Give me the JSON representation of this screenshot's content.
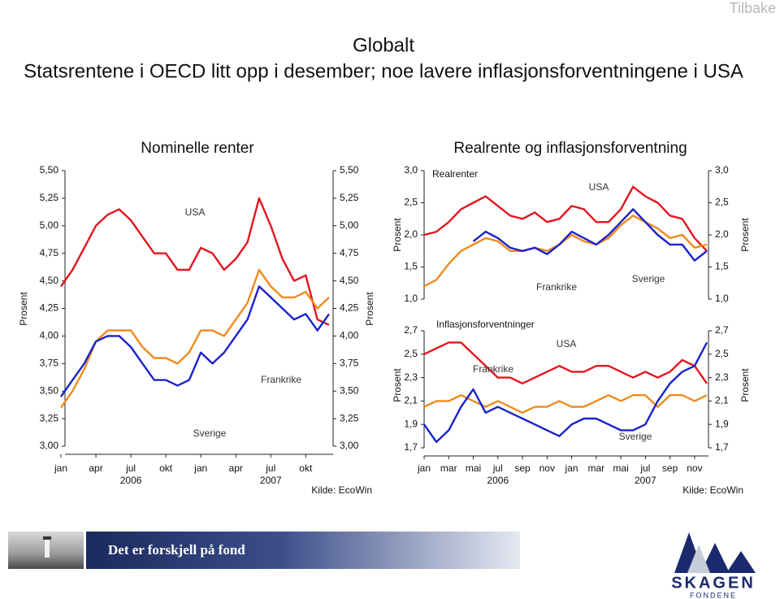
{
  "page": {
    "back_button": "Tilbake",
    "header": "Globalt",
    "subtitle": "Statsrentene i OECD litt opp i desember; noe lavere inflasjonsforventningene i USA",
    "banner": "Det er forskjell på fond",
    "logo": "SKAGEN",
    "logo_sub": "FONDENE"
  },
  "chart_data": [
    {
      "type": "line",
      "title": "Nominelle renter",
      "ylabel": "Prosent",
      "source": "Kilde: EcoWin",
      "xlim": [
        "2006-01",
        "2007-12"
      ],
      "x": [
        "2006-01",
        "2006-02",
        "2006-03",
        "2006-04",
        "2006-05",
        "2006-06",
        "2006-07",
        "2006-08",
        "2006-09",
        "2006-10",
        "2006-11",
        "2006-12",
        "2007-01",
        "2007-02",
        "2007-03",
        "2007-04",
        "2007-05",
        "2007-06",
        "2007-07",
        "2007-08",
        "2007-09",
        "2007-10",
        "2007-11",
        "2007-12"
      ],
      "xticks": [
        {
          "value": "2006-01",
          "label": "jan"
        },
        {
          "value": "2006-04",
          "label": "apr"
        },
        {
          "value": "2006-07",
          "label": "jul"
        },
        {
          "value": "2006-10",
          "label": "okt"
        },
        {
          "value": "2007-01",
          "label": "jan"
        },
        {
          "value": "2007-04",
          "label": "apr"
        },
        {
          "value": "2007-07",
          "label": "jul"
        },
        {
          "value": "2007-10",
          "label": "okt"
        }
      ],
      "xtick_years": [
        {
          "value": "2006-07",
          "label": "2006"
        },
        {
          "value": "2007-07",
          "label": "2007"
        }
      ],
      "ylim": [
        3,
        5.5
      ],
      "yticks": [
        {
          "value": 3,
          "label": "3,00"
        },
        {
          "value": 3.25,
          "label": "3,25"
        },
        {
          "value": 3.5,
          "label": "3,50"
        },
        {
          "value": 3.75,
          "label": "3,75"
        },
        {
          "value": 4,
          "label": "4,00"
        },
        {
          "value": 4.25,
          "label": "4,25"
        },
        {
          "value": 4.5,
          "label": "4,50"
        },
        {
          "value": 4.75,
          "label": "4,75"
        },
        {
          "value": 5,
          "label": "5,00"
        },
        {
          "value": 5.25,
          "label": "5,25"
        },
        {
          "value": 5.5,
          "label": "5,50"
        }
      ],
      "series": [
        {
          "name": "USA",
          "color": "#e3161e",
          "values": [
            4.45,
            4.6,
            4.8,
            5.0,
            5.1,
            5.15,
            5.05,
            4.9,
            4.75,
            4.75,
            4.6,
            4.6,
            4.8,
            4.75,
            4.6,
            4.7,
            4.85,
            5.25,
            5.0,
            4.7,
            4.5,
            4.55,
            4.15,
            4.1
          ]
        },
        {
          "name": "Frankrike",
          "color": "#f08a1c",
          "values": [
            3.35,
            3.5,
            3.7,
            3.95,
            4.05,
            4.05,
            4.05,
            3.9,
            3.8,
            3.8,
            3.75,
            3.85,
            4.05,
            4.05,
            4.0,
            4.15,
            4.3,
            4.6,
            4.45,
            4.35,
            4.35,
            4.4,
            4.25,
            4.35
          ]
        },
        {
          "name": "Sverige",
          "color": "#1a22c8",
          "values": [
            3.45,
            3.6,
            3.75,
            3.95,
            4.0,
            4.0,
            3.9,
            3.75,
            3.6,
            3.6,
            3.55,
            3.6,
            3.85,
            3.75,
            3.85,
            4.0,
            4.15,
            4.45,
            4.35,
            4.25,
            4.15,
            4.2,
            4.05,
            4.2
          ]
        }
      ]
    },
    {
      "type": "line",
      "title": "Realrente og inflasjonsforventning",
      "subtitle": "Realrenter",
      "ylabel": "Prosent",
      "xlim": [
        "2006-01",
        "2007-12"
      ],
      "x": [
        "2006-01",
        "2006-02",
        "2006-03",
        "2006-04",
        "2006-05",
        "2006-06",
        "2006-07",
        "2006-08",
        "2006-09",
        "2006-10",
        "2006-11",
        "2006-12",
        "2007-01",
        "2007-02",
        "2007-03",
        "2007-04",
        "2007-05",
        "2007-06",
        "2007-07",
        "2007-08",
        "2007-09",
        "2007-10",
        "2007-11",
        "2007-12"
      ],
      "ylim": [
        1,
        3
      ],
      "yticks": [
        {
          "value": 1,
          "label": "1,0"
        },
        {
          "value": 1.5,
          "label": "1,5"
        },
        {
          "value": 2,
          "label": "2,0"
        },
        {
          "value": 2.5,
          "label": "2,5"
        },
        {
          "value": 3,
          "label": "3,0"
        }
      ],
      "series": [
        {
          "name": "USA",
          "color": "#e3161e",
          "values": [
            2.0,
            2.05,
            2.2,
            2.4,
            2.5,
            2.6,
            2.45,
            2.3,
            2.25,
            2.35,
            2.2,
            2.25,
            2.45,
            2.4,
            2.2,
            2.2,
            2.4,
            2.75,
            2.6,
            2.5,
            2.3,
            2.25,
            1.95,
            1.75
          ]
        },
        {
          "name": "Frankrike",
          "color": "#f08a1c",
          "values": [
            1.2,
            1.3,
            1.55,
            1.75,
            1.85,
            1.95,
            1.9,
            1.75,
            1.75,
            1.8,
            1.75,
            1.85,
            2.0,
            1.9,
            1.85,
            1.95,
            2.15,
            2.3,
            2.2,
            2.1,
            1.95,
            2.0,
            1.8,
            1.85
          ]
        },
        {
          "name": "Sverige",
          "color": "#1a22c8",
          "values": [
            null,
            null,
            null,
            null,
            1.9,
            2.05,
            1.95,
            1.8,
            1.75,
            1.8,
            1.7,
            1.85,
            2.05,
            1.95,
            1.85,
            2.0,
            2.2,
            2.4,
            2.2,
            2.0,
            1.85,
            1.85,
            1.6,
            1.75
          ]
        }
      ]
    },
    {
      "type": "line",
      "subtitle": "Inflasjonsforventninger",
      "ylabel": "Prosent",
      "source": "Kilde: EcoWin",
      "xlim": [
        "2006-01",
        "2007-12"
      ],
      "x": [
        "2006-01",
        "2006-02",
        "2006-03",
        "2006-04",
        "2006-05",
        "2006-06",
        "2006-07",
        "2006-08",
        "2006-09",
        "2006-10",
        "2006-11",
        "2006-12",
        "2007-01",
        "2007-02",
        "2007-03",
        "2007-04",
        "2007-05",
        "2007-06",
        "2007-07",
        "2007-08",
        "2007-09",
        "2007-10",
        "2007-11",
        "2007-12"
      ],
      "xticks": [
        {
          "value": "2006-01",
          "label": "jan"
        },
        {
          "value": "2006-03",
          "label": "mar"
        },
        {
          "value": "2006-05",
          "label": "mai"
        },
        {
          "value": "2006-07",
          "label": "jul"
        },
        {
          "value": "2006-09",
          "label": "sep"
        },
        {
          "value": "2006-11",
          "label": "nov"
        },
        {
          "value": "2007-01",
          "label": "jan"
        },
        {
          "value": "2007-03",
          "label": "mar"
        },
        {
          "value": "2007-05",
          "label": "mai"
        },
        {
          "value": "2007-07",
          "label": "jul"
        },
        {
          "value": "2007-09",
          "label": "sep"
        },
        {
          "value": "2007-11",
          "label": "nov"
        }
      ],
      "xtick_years": [
        {
          "value": "2006-07",
          "label": "2006"
        },
        {
          "value": "2007-07",
          "label": "2007"
        }
      ],
      "ylim": [
        1.7,
        2.7
      ],
      "yticks": [
        {
          "value": 1.7,
          "label": "1,7"
        },
        {
          "value": 1.9,
          "label": "1,9"
        },
        {
          "value": 2.1,
          "label": "2,1"
        },
        {
          "value": 2.3,
          "label": "2,3"
        },
        {
          "value": 2.5,
          "label": "2,5"
        },
        {
          "value": 2.7,
          "label": "2,7"
        }
      ],
      "series": [
        {
          "name": "USA",
          "color": "#e3161e",
          "values": [
            2.5,
            2.55,
            2.6,
            2.6,
            2.5,
            2.4,
            2.3,
            2.3,
            2.25,
            2.3,
            2.35,
            2.4,
            2.35,
            2.35,
            2.4,
            2.4,
            2.35,
            2.3,
            2.35,
            2.3,
            2.35,
            2.45,
            2.4,
            2.25
          ]
        },
        {
          "name": "Frankrike",
          "color": "#f08a1c",
          "values": [
            2.05,
            2.1,
            2.1,
            2.15,
            2.1,
            2.05,
            2.1,
            2.05,
            2.0,
            2.05,
            2.05,
            2.1,
            2.05,
            2.05,
            2.1,
            2.15,
            2.1,
            2.15,
            2.15,
            2.05,
            2.15,
            2.15,
            2.1,
            2.15
          ]
        },
        {
          "name": "Sverige",
          "color": "#1a22c8",
          "values": [
            1.9,
            1.75,
            1.85,
            2.05,
            2.2,
            2.0,
            2.05,
            2.0,
            1.95,
            1.9,
            1.85,
            1.8,
            1.9,
            1.95,
            1.95,
            1.9,
            1.85,
            1.85,
            1.9,
            2.1,
            2.25,
            2.35,
            2.4,
            2.6
          ]
        }
      ]
    }
  ]
}
